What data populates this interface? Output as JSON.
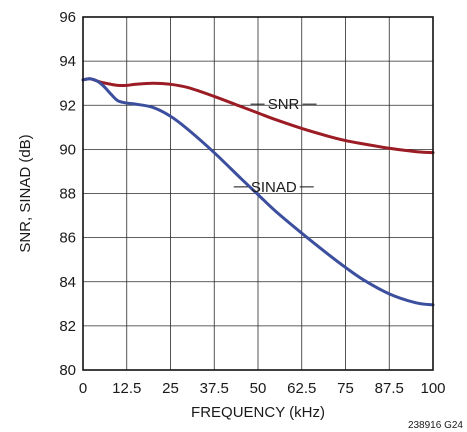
{
  "chart_data": {
    "type": "line",
    "xlabel": "FREQUENCY (kHz)",
    "ylabel": "SNR, SINAD (dB)",
    "xlim": [
      0,
      100
    ],
    "ylim": [
      80,
      96
    ],
    "x_ticks": [
      0,
      12.5,
      25,
      37.5,
      50,
      62.5,
      75,
      87.5,
      100
    ],
    "x_tick_labels": [
      "0",
      "12.5",
      "25",
      "37.5",
      "50",
      "62.5",
      "75",
      "87.5",
      "100"
    ],
    "y_ticks": [
      80,
      82,
      84,
      86,
      88,
      90,
      92,
      94,
      96
    ],
    "y_tick_labels": [
      "80",
      "82",
      "84",
      "86",
      "88",
      "90",
      "92",
      "94",
      "96"
    ],
    "grid": true,
    "figure_id": "238916 G24",
    "series": [
      {
        "name": "SNR",
        "color": "#9b1c24",
        "x": [
          0,
          2,
          5,
          8,
          10,
          12.5,
          15,
          20,
          25,
          30,
          37.5,
          45,
          50,
          55,
          62.5,
          70,
          75,
          80,
          87.5,
          95,
          100
        ],
        "y": [
          93.15,
          93.2,
          93.05,
          92.95,
          92.9,
          92.9,
          92.95,
          93.0,
          92.95,
          92.8,
          92.4,
          91.95,
          91.65,
          91.35,
          90.95,
          90.6,
          90.4,
          90.25,
          90.05,
          89.9,
          89.85
        ]
      },
      {
        "name": "SINAD",
        "color": "#3c4f9e",
        "x": [
          0,
          2,
          4,
          6,
          8,
          10,
          12.5,
          15,
          20,
          25,
          30,
          37.5,
          45,
          50,
          55,
          62.5,
          70,
          75,
          80,
          87.5,
          95,
          100
        ],
        "y": [
          93.15,
          93.2,
          93.1,
          92.85,
          92.5,
          92.2,
          92.1,
          92.05,
          91.9,
          91.5,
          90.9,
          89.85,
          88.7,
          87.95,
          87.2,
          86.2,
          85.25,
          84.65,
          84.1,
          83.45,
          83.05,
          82.95
        ]
      }
    ]
  }
}
